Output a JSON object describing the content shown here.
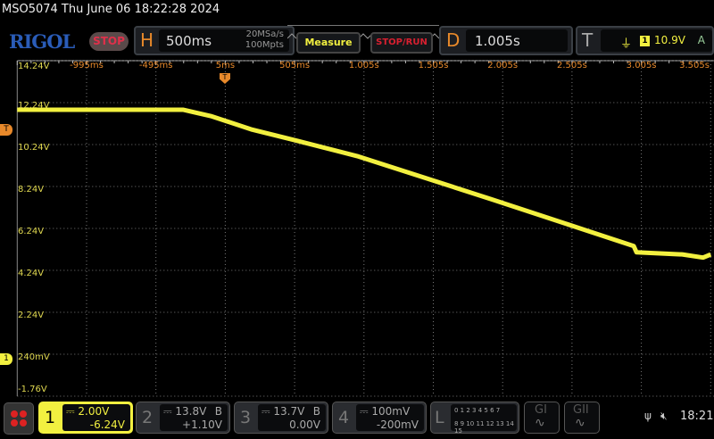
{
  "header": {
    "title": "MSO5074  Thu June 06 18:22:28 2024",
    "logo": "RIGOL",
    "run_state": "STOP"
  },
  "horizontal": {
    "letter": "H",
    "timebase": "500ms",
    "sample_rate": "20MSa/s",
    "memory_depth": "100Mpts"
  },
  "buttons": {
    "measure": "Measure",
    "stop_run": "STOP/RUN"
  },
  "delay": {
    "letter": "D",
    "value": "1.005s"
  },
  "trigger": {
    "letter": "T",
    "source": "1",
    "level": "10.9V",
    "mode": "A",
    "icon": "falling-edge-trigger-icon"
  },
  "channels": [
    {
      "num": "1",
      "scale": "2.00V",
      "offset": "-6.24V",
      "coupling": "DC",
      "bw": "",
      "active": true,
      "color": "#f2f040"
    },
    {
      "num": "2",
      "scale": "13.8V",
      "offset": "+1.10V",
      "coupling": "DC",
      "bw": "B",
      "active": false
    },
    {
      "num": "3",
      "scale": "13.7V",
      "offset": "0.00V",
      "coupling": "DC",
      "bw": "B",
      "active": false
    },
    {
      "num": "4",
      "scale": "100mV",
      "offset": "-200mV",
      "coupling": "DC",
      "bw": "",
      "active": false
    }
  ],
  "logic": {
    "letter": "L",
    "row1": "0 1 2 3  4 5 6 7",
    "row2": "8 9 10 11 12 13 14 15"
  },
  "generators": [
    {
      "label": "GI"
    },
    {
      "label": "GII"
    }
  ],
  "status": {
    "clock": "18:21",
    "usb_icon": "usb-icon",
    "sound_icon": "mute-icon"
  },
  "markers": {
    "trigger_level": "T",
    "channel1_ground": "1"
  },
  "chart_data": {
    "type": "line",
    "xlabel": "",
    "ylabel": "",
    "x_unit": "s",
    "y_unit": "V",
    "xlim": [
      -1.495,
      3.505
    ],
    "ylim": [
      -1.76,
      14.24
    ],
    "x_tick_labels": [
      "-995ms",
      "-495ms",
      "5ms",
      "505ms",
      "1.005s",
      "1.505s",
      "2.005s",
      "2.505s",
      "3.005s",
      "3.505s"
    ],
    "x_ticks": [
      -0.995,
      -0.495,
      0.005,
      0.505,
      1.005,
      1.505,
      2.005,
      2.505,
      3.005,
      3.505
    ],
    "y_tick_labels": [
      "14.24V",
      "12.24V",
      "10.24V",
      "8.24V",
      "6.24V",
      "4.24V",
      "2.24V",
      "240mV",
      "-1.76V"
    ],
    "y_ticks": [
      14.24,
      12.24,
      10.24,
      8.24,
      6.24,
      4.24,
      2.24,
      0.24,
      -1.76
    ],
    "grid": true,
    "series": [
      {
        "color": "#f2f040",
        "x": [
          -1.495,
          -0.3,
          -0.1,
          0.2,
          0.505,
          0.955,
          1.92,
          2.95,
          2.97,
          3.3,
          3.45,
          3.505
        ],
        "y": [
          11.9,
          11.9,
          11.6,
          10.95,
          10.45,
          9.69,
          7.64,
          5.4,
          5.1,
          5.0,
          4.85,
          5.0
        ]
      }
    ]
  }
}
